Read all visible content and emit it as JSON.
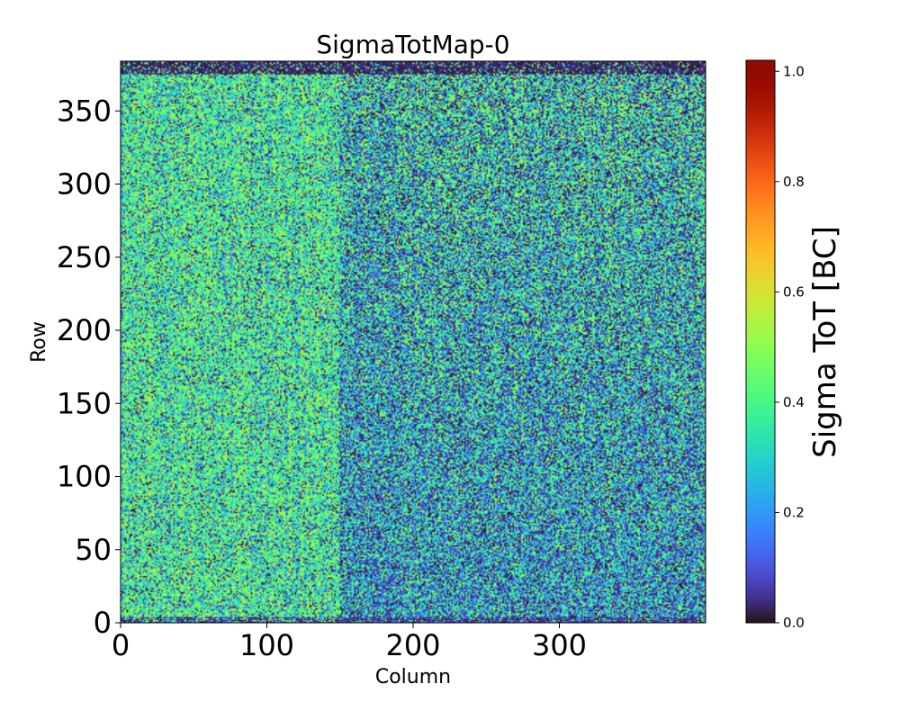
{
  "chart_data": {
    "type": "heatmap",
    "title": "SigmaTotMap-0",
    "xlabel": "Column",
    "ylabel": "Row",
    "xlim": [
      0,
      400
    ],
    "ylim": [
      0,
      384
    ],
    "x_ticks": [
      0,
      100,
      200,
      300
    ],
    "x_tick_labels": [
      "0",
      "100",
      "200",
      "300"
    ],
    "y_ticks": [
      0,
      50,
      100,
      150,
      200,
      250,
      300,
      350
    ],
    "y_tick_labels": [
      "0",
      "50",
      "100",
      "150",
      "200",
      "250",
      "300",
      "350"
    ],
    "grid": {
      "columns": 400,
      "rows": 384
    },
    "colormap": "turbo",
    "colorbar": {
      "label": "Sigma ToT [BC]",
      "range": [
        0.0,
        1.02
      ],
      "ticks": [
        0.0,
        0.2,
        0.4,
        0.6,
        0.8,
        1.0
      ],
      "tick_labels": [
        "0.0",
        "0.2",
        "0.4",
        "0.6",
        "0.8",
        "1.0"
      ]
    },
    "value_distribution": {
      "typical_range": [
        0.0,
        0.55
      ],
      "dominant_value": 0.38,
      "left_region_columns": [
        0,
        150
      ],
      "left_region_mean": 0.38,
      "right_region_columns": [
        150,
        400
      ],
      "right_region_mean": 0.28,
      "top_edge_rows": [
        375,
        384
      ],
      "top_edge_value": 0.03,
      "bottom_edge_rows": [
        0,
        3
      ],
      "bottom_edge_value": 0.05
    }
  }
}
